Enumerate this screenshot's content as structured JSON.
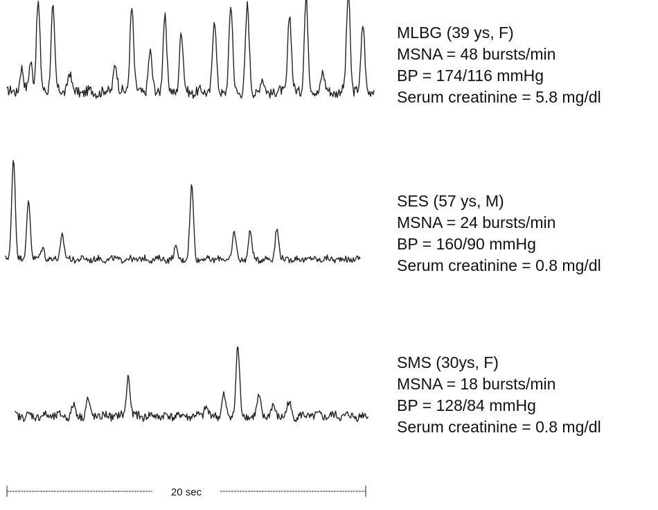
{
  "chart_data": {
    "type": "line",
    "duration_sec": 20,
    "scale_label": "20 sec",
    "series": [
      {
        "name": "MLBG (39 ys, F)",
        "lines": [
          "MLBG (39 ys, F)",
          "MSNA = 48 bursts/min",
          "BP = 174/116 mmHg",
          "Serum creatinine = 5.8 mg/dl"
        ],
        "bursts_per_min": 48,
        "baseline": 0.12,
        "noise": 0.05,
        "peaks": [
          [
            0.8,
            0.25
          ],
          [
            1.3,
            0.3
          ],
          [
            1.7,
            0.9
          ],
          [
            2.5,
            0.85
          ],
          [
            3.4,
            0.2
          ],
          [
            5.9,
            0.3
          ],
          [
            6.8,
            0.85
          ],
          [
            7.8,
            0.4
          ],
          [
            8.6,
            0.75
          ],
          [
            9.5,
            0.6
          ],
          [
            11.3,
            0.72
          ],
          [
            12.2,
            0.85
          ],
          [
            13.1,
            0.85
          ],
          [
            13.9,
            0.12
          ],
          [
            15.4,
            0.78
          ],
          [
            16.3,
            0.95
          ],
          [
            17.2,
            0.2
          ],
          [
            18.6,
            1.0
          ],
          [
            19.4,
            0.68
          ]
        ]
      },
      {
        "name": "SES (57 ys, M)",
        "lines": [
          "SES (57 ys, M)",
          "MSNA = 24 bursts/min",
          "BP = 160/90 mmHg",
          "Serum creatinine = 0.8 mg/dl"
        ],
        "bursts_per_min": 24,
        "baseline": 0.04,
        "noise": 0.03,
        "peaks": [
          [
            0.45,
            1.0
          ],
          [
            1.3,
            0.58
          ],
          [
            2.1,
            0.12
          ],
          [
            3.2,
            0.24
          ],
          [
            9.6,
            0.1
          ],
          [
            10.5,
            0.72
          ],
          [
            12.9,
            0.26
          ],
          [
            13.8,
            0.26
          ],
          [
            15.3,
            0.3
          ]
        ]
      },
      {
        "name": "SMS (30ys, F)",
        "lines": [
          "SMS (30ys, F)",
          "MSNA = 18 bursts/min",
          "BP = 128/84 mmHg",
          "Serum creatinine = 0.8 mg/dl"
        ],
        "bursts_per_min": 18,
        "baseline": 0.08,
        "noise": 0.05,
        "peaks": [
          [
            3.3,
            0.13
          ],
          [
            4.1,
            0.2
          ],
          [
            6.4,
            0.5
          ],
          [
            10.8,
            0.12
          ],
          [
            11.8,
            0.25
          ],
          [
            12.6,
            0.85
          ],
          [
            13.8,
            0.22
          ],
          [
            14.6,
            0.12
          ],
          [
            15.5,
            0.16
          ]
        ]
      }
    ]
  }
}
